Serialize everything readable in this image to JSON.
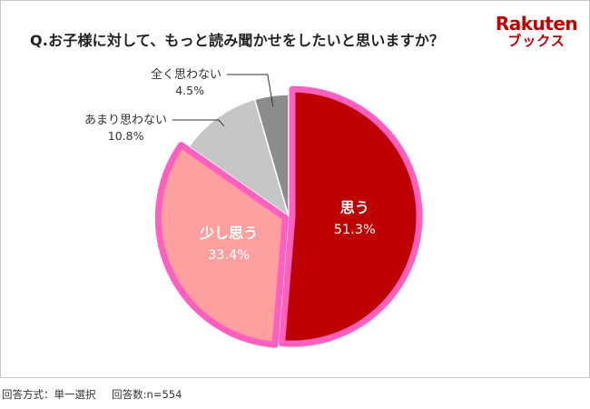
{
  "title": "Q.お子様に対して、もっと読み聞かせをしたいと思いますか？",
  "logo": {
    "top": "Rakuten",
    "bottom": "ブックス"
  },
  "footer": {
    "method": "回答方式：単一選択",
    "count": "回答数:n=554"
  },
  "chart_data": {
    "type": "pie",
    "slices": [
      {
        "label": "思う",
        "value": 51.3,
        "value_label": "51.3%",
        "color": "#bf0000",
        "label_color": "#ffffff",
        "highlight": true,
        "callout": false
      },
      {
        "label": "少し思う",
        "value": 33.4,
        "value_label": "33.4%",
        "color": "#ffa0a0",
        "label_color": "#ffffff",
        "highlight": true,
        "callout": false
      },
      {
        "label": "あまり思わない",
        "value": 10.8,
        "value_label": "10.8%",
        "color": "#c6c6c6",
        "label_color": "#333333",
        "highlight": false,
        "callout": true
      },
      {
        "label": "全く思わない",
        "value": 4.5,
        "value_label": "4.5%",
        "color": "#8c8c8c",
        "label_color": "#333333",
        "highlight": false,
        "callout": true
      }
    ],
    "highlight_border_color": "#ff5fbe",
    "start": "12 o'clock",
    "direction": "clockwise"
  }
}
